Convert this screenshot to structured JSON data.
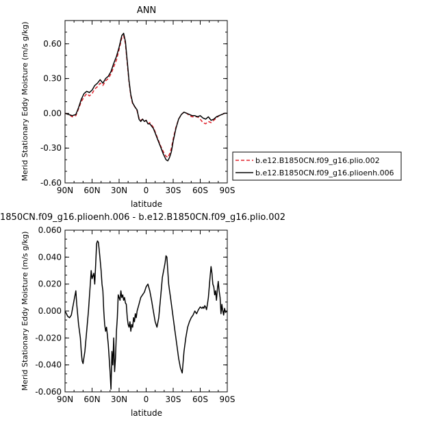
{
  "chart_data": [
    {
      "type": "line",
      "title": "ANN",
      "xlabel": "latitude",
      "ylabel": "Merid Stationary Eddy Moisture (m/s g/kg)",
      "xlim": [
        90,
        -90
      ],
      "ylim": [
        -0.6,
        0.8
      ],
      "x_ticks": [
        "90N",
        "60N",
        "30N",
        "0",
        "30S",
        "60S",
        "90S"
      ],
      "y_ticks": [
        "0.60",
        "0.30",
        "0.00",
        "-0.30",
        "-0.60"
      ],
      "grid": false,
      "legend": "right",
      "series": [
        {
          "name": "b.e12.B1850CN.f09_g16.plio.002",
          "color": "#e0202a",
          "dash": "dashed",
          "x": [
            90,
            86,
            82,
            78,
            75,
            72,
            69,
            66,
            63,
            60,
            57,
            54,
            51,
            48,
            45,
            42,
            39,
            36,
            33,
            30,
            27,
            25,
            23,
            21,
            19,
            17,
            15,
            12,
            10,
            8,
            6,
            4,
            2,
            0,
            -2,
            -4,
            -6,
            -8,
            -10,
            -13,
            -16,
            -19,
            -22,
            -24,
            -26,
            -28,
            -30,
            -33,
            -36,
            -39,
            -42,
            -45,
            -48,
            -51,
            -54,
            -57,
            -60,
            -63,
            -66,
            -69,
            -72,
            -75,
            -78,
            -81,
            -84,
            -87,
            -90
          ],
          "y": [
            0.0,
            -0.01,
            -0.03,
            -0.02,
            0.04,
            0.1,
            0.14,
            0.17,
            0.15,
            0.17,
            0.21,
            0.23,
            0.26,
            0.24,
            0.28,
            0.3,
            0.34,
            0.4,
            0.46,
            0.55,
            0.65,
            0.67,
            0.6,
            0.43,
            0.27,
            0.15,
            0.08,
            0.05,
            0.02,
            -0.04,
            -0.06,
            -0.05,
            -0.07,
            -0.06,
            -0.09,
            -0.08,
            -0.1,
            -0.12,
            -0.16,
            -0.22,
            -0.28,
            -0.33,
            -0.37,
            -0.38,
            -0.35,
            -0.3,
            -0.22,
            -0.12,
            -0.05,
            -0.01,
            0.01,
            0.0,
            -0.02,
            -0.03,
            -0.03,
            -0.03,
            -0.05,
            -0.08,
            -0.09,
            -0.07,
            -0.08,
            -0.06,
            -0.04,
            -0.02,
            -0.01,
            0.0,
            0.0
          ]
        },
        {
          "name": "b.e12.B1850CN.f09_g16.plioenh.006",
          "color": "#000000",
          "dash": "solid",
          "x": [
            90,
            86,
            82,
            78,
            75,
            72,
            69,
            66,
            63,
            60,
            57,
            54,
            51,
            48,
            45,
            42,
            39,
            36,
            33,
            30,
            27,
            25,
            23,
            21,
            19,
            17,
            15,
            12,
            10,
            8,
            6,
            4,
            2,
            0,
            -2,
            -4,
            -6,
            -8,
            -10,
            -13,
            -16,
            -19,
            -22,
            -24,
            -26,
            -28,
            -30,
            -33,
            -36,
            -39,
            -42,
            -45,
            -48,
            -51,
            -54,
            -57,
            -60,
            -63,
            -66,
            -69,
            -72,
            -75,
            -78,
            -81,
            -84,
            -87,
            -90
          ],
          "y": [
            0.0,
            -0.01,
            -0.02,
            -0.01,
            0.05,
            0.12,
            0.17,
            0.19,
            0.18,
            0.2,
            0.24,
            0.26,
            0.29,
            0.26,
            0.3,
            0.32,
            0.36,
            0.43,
            0.49,
            0.57,
            0.67,
            0.69,
            0.62,
            0.45,
            0.28,
            0.16,
            0.09,
            0.05,
            0.03,
            -0.05,
            -0.07,
            -0.05,
            -0.07,
            -0.06,
            -0.09,
            -0.09,
            -0.11,
            -0.13,
            -0.17,
            -0.23,
            -0.29,
            -0.35,
            -0.4,
            -0.41,
            -0.38,
            -0.33,
            -0.24,
            -0.13,
            -0.05,
            -0.01,
            0.01,
            0.0,
            -0.01,
            -0.02,
            -0.02,
            -0.03,
            -0.02,
            -0.04,
            -0.05,
            -0.03,
            -0.06,
            -0.05,
            -0.03,
            -0.02,
            -0.01,
            0.0,
            0.0
          ]
        }
      ]
    },
    {
      "type": "line",
      "title": "1850CN.f09_g16.plioenh.006 - b.e12.B1850CN.f09_g16.plio.002",
      "xlabel": "latitude",
      "ylabel": "Merid Stationary Eddy Moisture (m/s g/kg)",
      "xlim": [
        90,
        -90
      ],
      "ylim": [
        -0.06,
        0.06
      ],
      "x_ticks": [
        "90N",
        "60N",
        "30N",
        "0",
        "30S",
        "60S",
        "90S"
      ],
      "y_ticks": [
        "0.060",
        "0.040",
        "0.020",
        "0.000",
        "-0.020",
        "-0.040",
        "-0.060"
      ],
      "grid": false,
      "series": [
        {
          "color": "#000000",
          "x": [
            90,
            87,
            85,
            83,
            80,
            78,
            77,
            75,
            73,
            72,
            71,
            70,
            68,
            66,
            64,
            62,
            61,
            60,
            58,
            57,
            56,
            55,
            54,
            53,
            52,
            51,
            50,
            49,
            48,
            47,
            46,
            45,
            44,
            43,
            42,
            41,
            40,
            39,
            38,
            37,
            36,
            35,
            34,
            33,
            32,
            31,
            30,
            29,
            28,
            27,
            26,
            25,
            24,
            23,
            22,
            21,
            20,
            19,
            18,
            17,
            16,
            15,
            14,
            13,
            12,
            11,
            10,
            8,
            6,
            4,
            2,
            0,
            -2,
            -4,
            -6,
            -8,
            -10,
            -12,
            -14,
            -16,
            -18,
            -20,
            -21,
            -22,
            -23,
            -24,
            -25,
            -26,
            -27,
            -28,
            -30,
            -32,
            -34,
            -36,
            -38,
            -40,
            -42,
            -44,
            -46,
            -48,
            -50,
            -52,
            -54,
            -56,
            -58,
            -60,
            -62,
            -63,
            -64,
            -65,
            -66,
            -67,
            -68,
            -69,
            -70,
            -71,
            -72,
            -73,
            -74,
            -75,
            -76,
            -77,
            -78,
            -79,
            -80,
            -81,
            -82,
            -83,
            -84,
            -85,
            -86,
            -87,
            -88,
            -90
          ],
          "y": [
            0.0,
            -0.004,
            -0.005,
            -0.003,
            0.008,
            0.015,
            0.005,
            -0.01,
            -0.02,
            -0.03,
            -0.037,
            -0.039,
            -0.03,
            -0.015,
            0.0,
            0.02,
            0.03,
            0.024,
            0.028,
            0.02,
            0.035,
            0.05,
            0.052,
            0.051,
            0.045,
            0.038,
            0.03,
            0.02,
            0.015,
            0.0,
            -0.01,
            -0.015,
            -0.012,
            -0.018,
            -0.025,
            -0.035,
            -0.045,
            -0.058,
            -0.03,
            -0.04,
            -0.02,
            -0.045,
            -0.035,
            -0.015,
            -0.005,
            0.012,
            0.01,
            0.008,
            0.015,
            0.01,
            0.012,
            0.008,
            0.01,
            0.006,
            0.005,
            -0.005,
            -0.01,
            -0.012,
            -0.008,
            -0.015,
            -0.01,
            -0.012,
            -0.005,
            -0.008,
            -0.002,
            -0.005,
            0.0,
            0.005,
            0.01,
            0.012,
            0.014,
            0.018,
            0.02,
            0.015,
            0.008,
            0.0,
            -0.008,
            -0.012,
            -0.005,
            0.01,
            0.025,
            0.032,
            0.036,
            0.041,
            0.04,
            0.03,
            0.02,
            0.015,
            0.01,
            0.005,
            -0.005,
            -0.015,
            -0.025,
            -0.035,
            -0.042,
            -0.046,
            -0.03,
            -0.02,
            -0.012,
            -0.008,
            -0.005,
            -0.003,
            0.0,
            -0.002,
            0.001,
            0.003,
            0.002,
            0.003,
            0.002,
            0.004,
            0.003,
            0.001,
            0.005,
            0.01,
            0.018,
            0.026,
            0.033,
            0.028,
            0.02,
            0.018,
            0.012,
            0.015,
            0.008,
            0.016,
            0.022,
            0.015,
            0.01,
            -0.002,
            0.005,
            0.0,
            -0.003,
            0.002,
            -0.001,
            0.0
          ]
        }
      ]
    }
  ]
}
